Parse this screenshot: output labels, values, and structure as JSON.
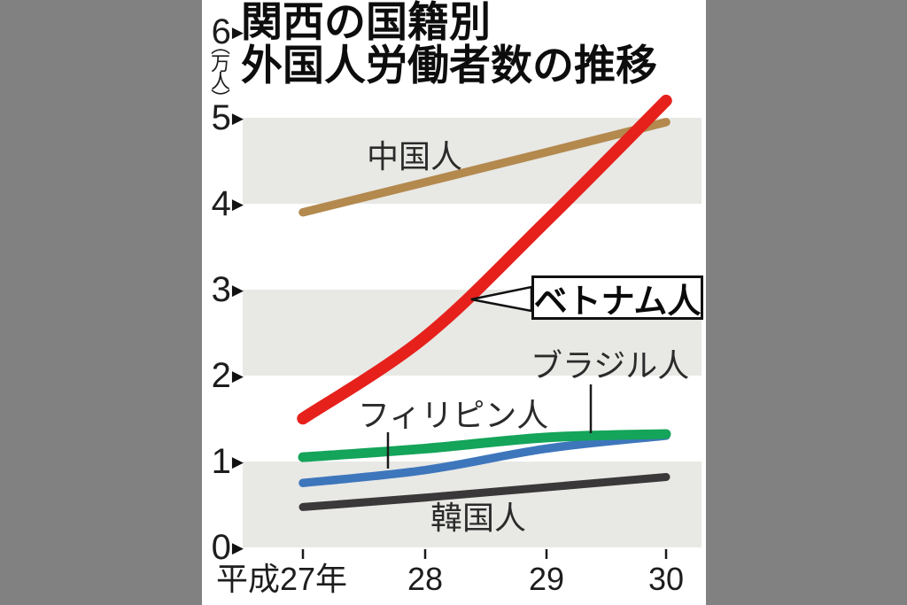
{
  "frame": {
    "background_color": "#818181",
    "panel_background": "#ffffff"
  },
  "title": {
    "line1": "関西の国籍別",
    "line2": "外国人労働者数の推移"
  },
  "y_axis": {
    "unit": "（万人）",
    "tick_labels": [
      "6",
      "5",
      "4",
      "3",
      "2",
      "1",
      "0"
    ],
    "arrow_glyph": "▶"
  },
  "x_axis": {
    "labels": [
      "平成27年",
      "28",
      "29",
      "30"
    ]
  },
  "chart_data": {
    "type": "line",
    "title": "関西の国籍別 外国人労働者数の推移",
    "unit": "万人",
    "categories": [
      "平成27年",
      "28",
      "29",
      "30"
    ],
    "ylim": [
      0,
      6
    ],
    "grid": "alternating horizontal bands",
    "band_color": "#e8e8e5",
    "shaded_bands": [
      [
        0,
        1
      ],
      [
        2,
        3
      ],
      [
        4,
        5
      ]
    ],
    "legend_position": "inline labels on lines",
    "series": [
      {
        "name": "韓国人",
        "color": "#3a3838",
        "values": [
          0.47,
          0.58,
          0.7,
          0.82
        ]
      },
      {
        "name": "フィリピン人",
        "color": "#3e76bc",
        "values": [
          0.75,
          0.9,
          1.15,
          1.3
        ]
      },
      {
        "name": "ブラジル人",
        "color": "#14a45a",
        "values": [
          1.05,
          1.15,
          1.28,
          1.32
        ]
      },
      {
        "name": "中国人",
        "color": "#b3894e",
        "values": [
          3.9,
          4.25,
          4.6,
          4.95
        ]
      },
      {
        "name": "ベトナム人",
        "color": "#e6211c",
        "values": [
          1.5,
          2.45,
          3.8,
          5.2
        ]
      }
    ]
  }
}
